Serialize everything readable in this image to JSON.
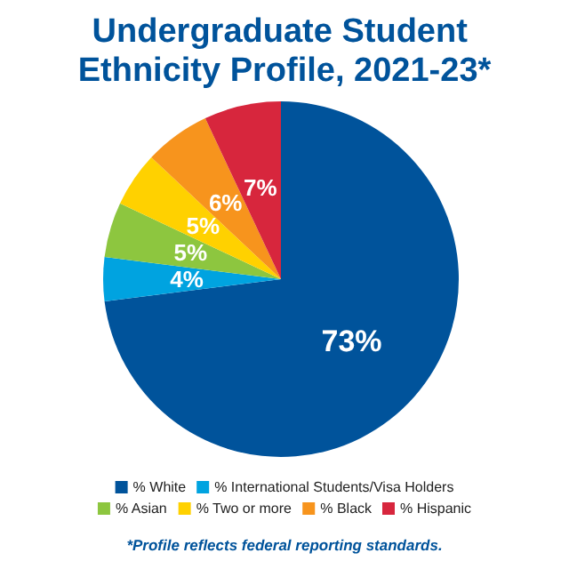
{
  "chart_data": {
    "type": "pie",
    "title": "Undergraduate Student Ethnicity Profile, 2021-23*",
    "categories": [
      "% White",
      "% International Students/Visa Holders",
      "% Asian",
      "% Two or more",
      "% Black",
      "% Hispanic"
    ],
    "values": [
      73,
      4,
      5,
      5,
      6,
      7
    ],
    "value_labels": [
      "73%",
      "4%",
      "5%",
      "5%",
      "6%",
      "7%"
    ],
    "colors": [
      "#00539b",
      "#00a3e0",
      "#8dc63f",
      "#ffd100",
      "#f7941d",
      "#d7263d"
    ],
    "legend": "bottom",
    "annotations": [
      "*Profile reflects federal reporting standards."
    ]
  }
}
